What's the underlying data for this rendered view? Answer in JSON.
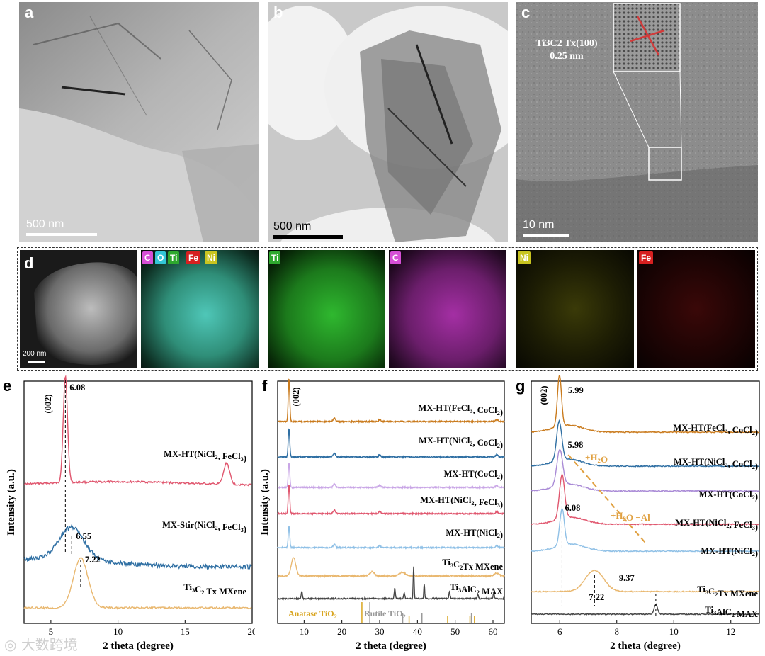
{
  "panels": {
    "a": {
      "label": "a",
      "scale_bar": "500 nm"
    },
    "b": {
      "label": "b",
      "scale_bar": "500 nm"
    },
    "c": {
      "label": "c",
      "scale_bar": "10 nm",
      "annotation_line1": "Ti3C2 Tx(100)",
      "annotation_line2": "0.25 nm"
    },
    "d": {
      "label": "d",
      "scale_bar": "200 nm",
      "tiles": [
        {
          "chips": []
        },
        {
          "chips": [
            {
              "text": "C",
              "color": "#d64fd6"
            },
            {
              "text": "O",
              "color": "#33c6d6"
            },
            {
              "text": "Ti",
              "color": "#2ea82e"
            },
            {
              "text": "Fe",
              "color": "#d62020"
            },
            {
              "text": "Ni",
              "color": "#c8c420"
            }
          ]
        },
        {
          "chips": [
            {
              "text": "Ti",
              "color": "#2ea82e"
            }
          ]
        },
        {
          "chips": [
            {
              "text": "C",
              "color": "#d64fd6"
            }
          ]
        },
        {
          "chips": [
            {
              "text": "Ni",
              "color": "#c8c420"
            }
          ]
        },
        {
          "chips": [
            {
              "text": "Fe",
              "color": "#d62020"
            }
          ]
        }
      ]
    },
    "e": {
      "label": "e"
    },
    "f": {
      "label": "f"
    },
    "g": {
      "label": "g"
    }
  },
  "watermark": "大数跨境",
  "chart_data": [
    {
      "id": "e",
      "type": "line",
      "xlabel": "2 theta (degree)",
      "ylabel": "Intensity (a.u.)",
      "xlim": [
        3,
        20
      ],
      "xticks": [
        5,
        10,
        15,
        20
      ],
      "peak_annotation": "(002)",
      "series": [
        {
          "name": "MX-HT(NiCl2, FeCl3)",
          "color": "#e0566e",
          "peaks": [
            {
              "x": 6.08,
              "label": "6.08"
            },
            {
              "x": 18.1
            }
          ]
        },
        {
          "name": "MX-Stir(NiCl2, FeCl3)",
          "color": "#2f6fa3",
          "peaks": [
            {
              "x": 6.55,
              "label": "6.55"
            }
          ]
        },
        {
          "name": "Ti3C2 Tx MXene",
          "color": "#e9b870",
          "peaks": [
            {
              "x": 7.22,
              "label": "7.22"
            }
          ]
        }
      ]
    },
    {
      "id": "f",
      "type": "line",
      "xlabel": "2 theta (degree)",
      "ylabel": "Intensity (a.u.)",
      "xlim": [
        3,
        63
      ],
      "xticks": [
        10,
        20,
        30,
        40,
        50,
        60
      ],
      "peak_annotation": "(002)",
      "reference_labels": [
        "Anatase TiO2",
        "Rutile TiO2"
      ],
      "series": [
        {
          "name": "MX-HT(FeCl3, CoCl2)",
          "color": "#c97a1c"
        },
        {
          "name": "MX-HT(NiCl2, CoCl2)",
          "color": "#2f6fa3"
        },
        {
          "name": "MX-HT(CoCl2)",
          "color": "#c9a6e6"
        },
        {
          "name": "MX-HT(NiCl2, FeCl3)",
          "color": "#e0566e"
        },
        {
          "name": "MX-HT(NiCl2)",
          "color": "#8fc0e6"
        },
        {
          "name": "Ti3C2Tx MXene",
          "color": "#e9b870"
        },
        {
          "name": "Ti3AlC2 MAX",
          "color": "#444444"
        }
      ]
    },
    {
      "id": "g",
      "type": "line",
      "xlabel": "2 theta (degree)",
      "ylabel": "",
      "xlim": [
        5,
        13
      ],
      "xticks": [
        6,
        8,
        10,
        12
      ],
      "peak_annotation": "(002)",
      "arrow_labels": [
        "+H2O",
        "+H2O  −Al"
      ],
      "series": [
        {
          "name": "MX-HT(FeCl3, CoCl2)",
          "color": "#c97a1c",
          "peak": 5.99,
          "peak_label": "5.99"
        },
        {
          "name": "MX-HT(NiCl2, CoCl2)",
          "color": "#2f6fa3",
          "peak": 5.98,
          "peak_label": "5.98"
        },
        {
          "name": "MX-HT(CoCl2)",
          "color": "#a98ad6",
          "peak": 6.0
        },
        {
          "name": "MX-HT(NiCl2, FeCl3)",
          "color": "#e0566e",
          "peak": 6.08,
          "peak_label": "6.08"
        },
        {
          "name": "MX-HT(NiCl2)",
          "color": "#8fc0e6",
          "peak": 6.08
        },
        {
          "name": "Ti3C2Tx MXene",
          "color": "#e9b870",
          "peak": 7.22,
          "peak_label": "7.22"
        },
        {
          "name": "Ti3AlC2 MAX",
          "color": "#444444",
          "peak": 9.37,
          "peak_label": "9.37"
        }
      ]
    }
  ]
}
